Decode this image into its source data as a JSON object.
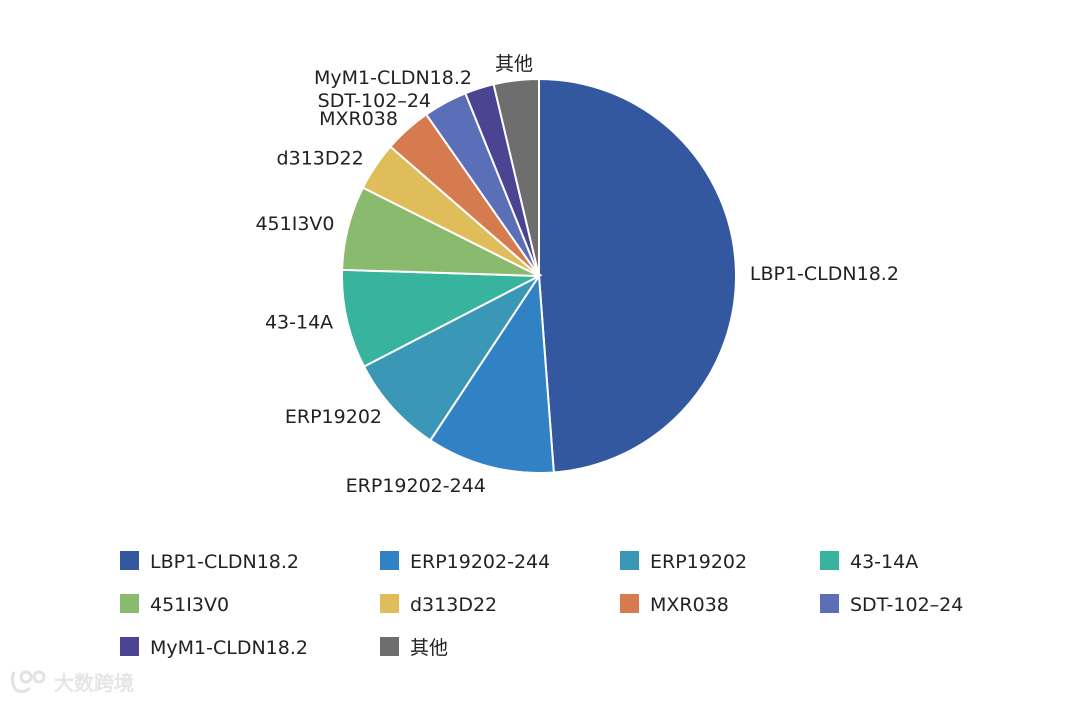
{
  "chart_data": {
    "type": "pie",
    "title": "",
    "legend_position": "bottom",
    "slices": [
      {
        "label": "LBP1-CLDN18.2",
        "value": 48.8,
        "color": "#3358a0"
      },
      {
        "label": "ERP19202-244",
        "value": 10.5,
        "color": "#3182c4"
      },
      {
        "label": "ERP19202",
        "value": 8.1,
        "color": "#3a97b6"
      },
      {
        "label": "43-14A",
        "value": 8.1,
        "color": "#37b39e"
      },
      {
        "label": "451I3V0",
        "value": 6.9,
        "color": "#8aba6e"
      },
      {
        "label": "d313D22",
        "value": 4.0,
        "color": "#e0bd5b"
      },
      {
        "label": "MXR038",
        "value": 3.9,
        "color": "#d57b4f"
      },
      {
        "label": "SDT-102–24",
        "value": 3.6,
        "color": "#5a6fb7"
      },
      {
        "label": "MyM1-CLDN18.2",
        "value": 2.4,
        "color": "#4b4493"
      },
      {
        "label": "其他",
        "value": 3.7,
        "color": "#6e6e6e"
      }
    ]
  },
  "watermark": {
    "text": "大数跨境",
    "icon": "logo-icon"
  }
}
